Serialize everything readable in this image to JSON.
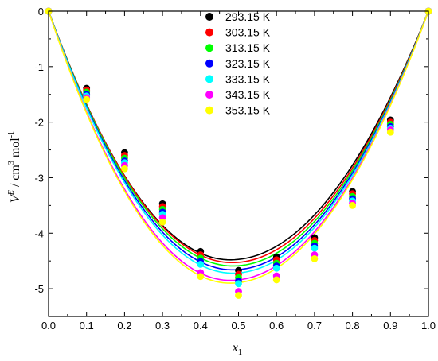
{
  "chart_data": {
    "type": "scatter",
    "xlabel": "x1",
    "ylabel": "V^E / cm^3 mol^-1",
    "xlim": [
      0.0,
      1.0
    ],
    "ylim": [
      -5.5,
      0
    ],
    "x_ticks": [
      "0.0",
      "0.1",
      "0.2",
      "0.3",
      "0.4",
      "0.5",
      "0.6",
      "0.7",
      "0.8",
      "0.9",
      "1.0"
    ],
    "y_ticks": [
      "0",
      "-1",
      "-2",
      "-3",
      "-4",
      "-5"
    ],
    "x": [
      0.0,
      0.1,
      0.2,
      0.3,
      0.4,
      0.5,
      0.6,
      0.7,
      0.8,
      0.9,
      1.0
    ],
    "legend_position": "top-center",
    "grid": false,
    "series": [
      {
        "name": "293.15 K",
        "color": "#000000",
        "values": [
          0,
          -1.39,
          -2.55,
          -3.47,
          -4.33,
          -4.67,
          -4.43,
          -4.08,
          -3.25,
          -1.96,
          0
        ],
        "fit_min": -4.48,
        "fit_xmin": 0.478
      },
      {
        "name": "303.15 K",
        "color": "#ff0000",
        "values": [
          0,
          -1.42,
          -2.6,
          -3.52,
          -4.39,
          -4.74,
          -4.48,
          -4.13,
          -3.29,
          -2.0,
          0
        ],
        "fit_min": -4.53,
        "fit_xmin": 0.483
      },
      {
        "name": "313.15 K",
        "color": "#00ff00",
        "values": [
          0,
          -1.46,
          -2.65,
          -3.57,
          -4.45,
          -4.8,
          -4.54,
          -4.18,
          -3.34,
          -2.04,
          0
        ],
        "fit_min": -4.59,
        "fit_xmin": 0.485
      },
      {
        "name": "323.15 K",
        "color": "#0000ff",
        "values": [
          0,
          -1.5,
          -2.7,
          -3.62,
          -4.51,
          -4.86,
          -4.59,
          -4.23,
          -3.38,
          -2.08,
          0
        ],
        "fit_min": -4.66,
        "fit_xmin": 0.485
      },
      {
        "name": "333.15 K",
        "color": "#00ffff",
        "values": [
          0,
          -1.53,
          -2.73,
          -3.66,
          -4.56,
          -4.91,
          -4.63,
          -4.27,
          -3.42,
          -2.11,
          0
        ],
        "fit_min": -4.72,
        "fit_xmin": 0.485
      },
      {
        "name": "343.15 K",
        "color": "#ff00ff",
        "values": [
          0,
          -1.56,
          -2.78,
          -3.72,
          -4.71,
          -5.05,
          -4.77,
          -4.39,
          -3.46,
          -2.14,
          0
        ],
        "fit_min": -4.85,
        "fit_xmin": 0.478
      },
      {
        "name": "353.15 K",
        "color": "#ffff00",
        "values": [
          0,
          -1.59,
          -2.84,
          -3.8,
          -4.78,
          -5.12,
          -4.84,
          -4.46,
          -3.5,
          -2.18,
          0
        ],
        "fit_min": -4.9,
        "fit_xmin": 0.478
      }
    ]
  }
}
